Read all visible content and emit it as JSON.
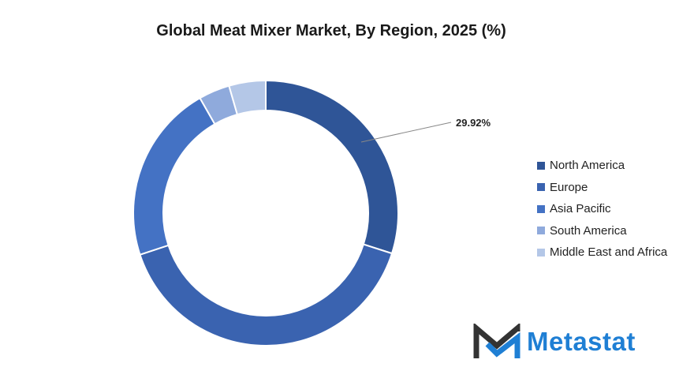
{
  "chart_data": {
    "type": "pie",
    "title": "Global Meat Mixer Market, By Region, 2025 (%)",
    "categories": [
      "North America",
      "Europe",
      "Asia Pacific",
      "South America",
      "Middle East and Africa"
    ],
    "values": [
      29.92,
      40.0,
      21.8,
      3.8,
      4.48
    ],
    "colors": [
      "#2F5597",
      "#3A63B0",
      "#4472C4",
      "#8FAADC",
      "#B4C7E7"
    ],
    "data_labels": [
      "29.92%"
    ],
    "legend_position": "right"
  },
  "logo": {
    "text": "Metastat"
  }
}
